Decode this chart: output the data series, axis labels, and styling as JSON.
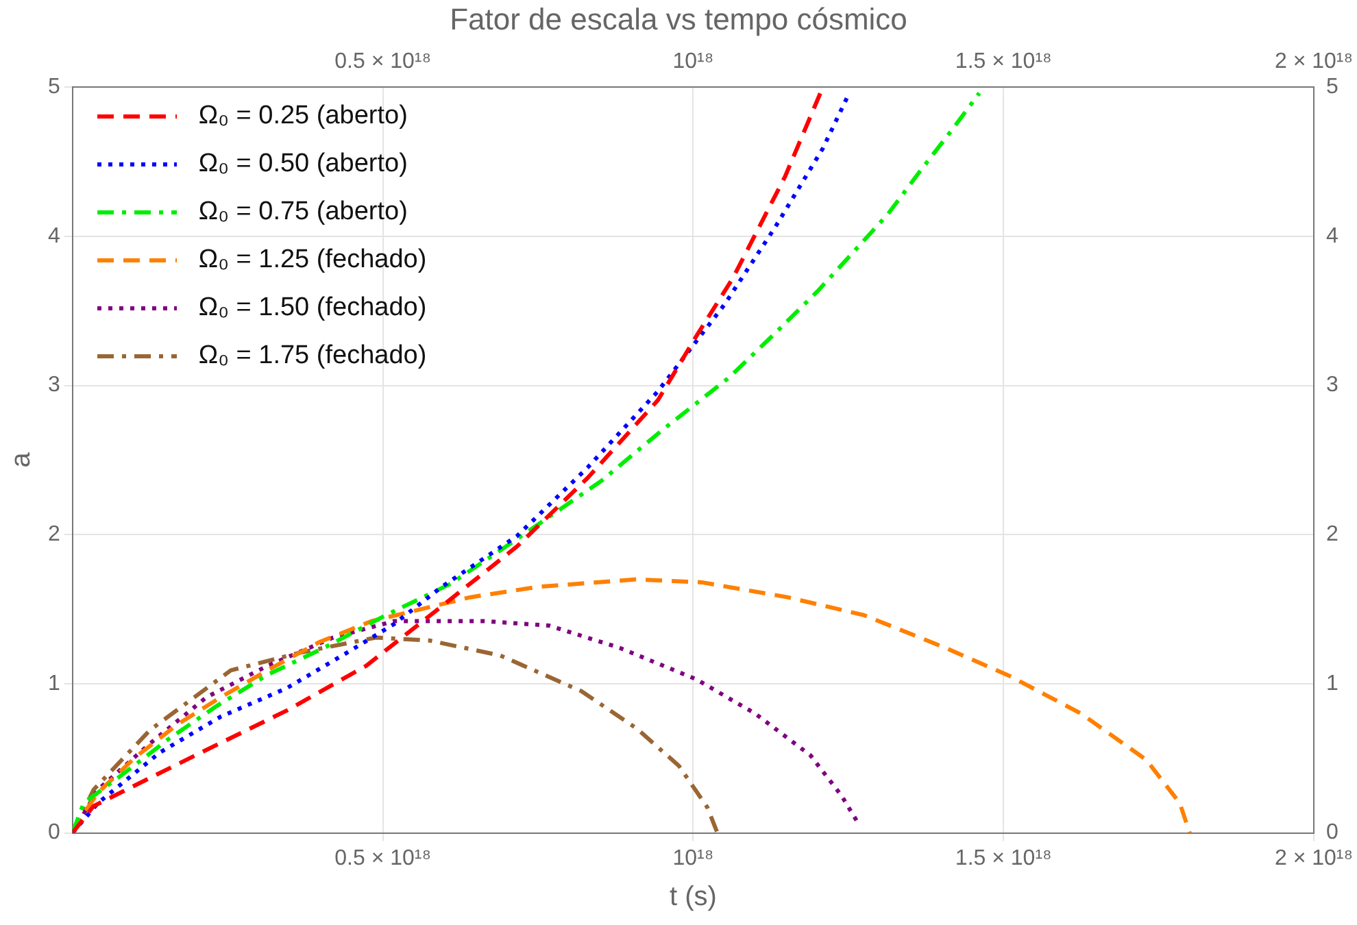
{
  "chart_data": {
    "type": "line",
    "title": "Fator de escala vs tempo cósmico",
    "xlabel": "t (s)",
    "ylabel": "a",
    "xlim": [
      0,
      2e+18
    ],
    "xticks": [
      {
        "value": 5e+17,
        "label": "0.5 × 10¹⁸"
      },
      {
        "value": 1e+18,
        "label": "10¹⁸"
      },
      {
        "value": 1.5e+18,
        "label": "1.5 × 10¹⁸"
      },
      {
        "value": 2e+18,
        "label": "2 × 10¹⁸"
      }
    ],
    "x2lim": [
      0,
      2e+18
    ],
    "x2ticks": [
      {
        "value": 5e+17,
        "label": "0.5 × 10¹⁸"
      },
      {
        "value": 1e+18,
        "label": "10¹⁸"
      },
      {
        "value": 1.5e+18,
        "label": "1.5 × 10¹⁸"
      },
      {
        "value": 2e+18,
        "label": "2 × 10¹⁸"
      }
    ],
    "ylim": [
      0,
      5
    ],
    "yticks": [
      0,
      1,
      2,
      3,
      4,
      5
    ],
    "y2lim": [
      0,
      5
    ],
    "y2ticks": [
      0,
      1,
      2,
      3,
      4,
      5
    ],
    "grid": true,
    "legend": "top left",
    "marker": "none",
    "series": [
      {
        "name": "Ω₀ = 0.25 (aberto)",
        "color": "#ff0000",
        "line_style": "dashed",
        "x": [
          0,
          3.4e+16,
          1.93e+17,
          3.45e+17,
          4.73e+17,
          5.95e+17,
          7.16e+17,
          8.3e+17,
          9.43e+17,
          1.005e+18,
          1.064e+18,
          1.148e+18,
          1.209e+18
        ],
        "values": [
          0,
          0.18,
          0.51,
          0.82,
          1.12,
          1.52,
          1.92,
          2.38,
          2.9,
          3.33,
          3.72,
          4.4,
          5.0
        ]
      },
      {
        "name": "Ω₀ = 0.50 (aberto)",
        "color": "#0000ff",
        "line_style": "dotted",
        "x": [
          0,
          4.1e+16,
          1.41e+17,
          2.39e+17,
          3.45e+17,
          4.43e+17,
          5.18e+17,
          5.95e+17,
          7.16e+17,
          8.3e+17,
          9.43e+17,
          1.05e+18,
          1.132e+18,
          1.209e+18,
          1.248e+18
        ],
        "values": [
          0,
          0.2,
          0.54,
          0.78,
          0.97,
          1.21,
          1.4,
          1.65,
          1.99,
          2.45,
          2.96,
          3.54,
          4.06,
          4.59,
          4.93
        ]
      },
      {
        "name": "Ω₀ = 0.75 (aberto)",
        "color": "#00ee00",
        "line_style": "dashdot",
        "x": [
          0,
          1.8e+16,
          8e+16,
          1.55e+17,
          2.32e+17,
          3.14e+17,
          4.05e+17,
          5.05e+17,
          6.09e+17,
          7.09e+17,
          8.52e+17,
          9.5e+17,
          1.057e+18,
          1.132e+18,
          1.2e+18,
          1.255e+18,
          1.314e+18,
          1.368e+18,
          1.42e+18,
          1.461e+18
        ],
        "values": [
          0,
          0.2,
          0.39,
          0.63,
          0.85,
          1.06,
          1.24,
          1.46,
          1.67,
          1.95,
          2.36,
          2.7,
          3.05,
          3.35,
          3.63,
          3.88,
          4.15,
          4.45,
          4.73,
          4.96
        ]
      },
      {
        "name": "Ω₀ = 1.25 (fechado)",
        "color": "#ff8000",
        "line_style": "dashed",
        "x": [
          0,
          5000000000000000.0,
          4.1e+16,
          1.02e+17,
          1.7e+17,
          2.39e+17,
          3.14e+17,
          3.98e+17,
          4.82e+17,
          6.41e+17,
          7.5e+17,
          9.09e+17,
          1.014e+18,
          1.152e+18,
          1.275e+18,
          1.407e+18,
          1.511e+18,
          1.625e+18,
          1.73e+18,
          1.784e+18,
          1.8e+18
        ],
        "values": [
          0,
          0.05,
          0.27,
          0.51,
          0.73,
          0.91,
          1.09,
          1.28,
          1.42,
          1.58,
          1.65,
          1.7,
          1.68,
          1.58,
          1.46,
          1.24,
          1.05,
          0.8,
          0.49,
          0.2,
          0
        ]
      },
      {
        "name": "Ω₀ = 1.50 (fechado)",
        "color": "#800080",
        "line_style": "dotted",
        "x": [
          0,
          4.1e+16,
          1.25e+17,
          2.16e+17,
          3.14e+17,
          4.2e+17,
          5.18e+17,
          6.64e+17,
          7.68e+17,
          8.82e+17,
          1.005e+18,
          1.1e+18,
          1.189e+18,
          1.239e+18,
          1.268e+18
        ],
        "values": [
          0,
          0.29,
          0.6,
          0.91,
          1.12,
          1.31,
          1.42,
          1.42,
          1.39,
          1.24,
          1.03,
          0.8,
          0.52,
          0.25,
          0.05
        ]
      },
      {
        "name": "Ω₀ = 1.75 (fechado)",
        "color": "#996633",
        "line_style": "dashdot",
        "x": [
          0,
          3.4e+16,
          1.25e+17,
          2.55e+17,
          3.68e+17,
          4.89e+17,
          5.75e+17,
          6.89e+17,
          8.2e+17,
          9.09e+17,
          9.77e+17,
          1.023e+18,
          1.039e+18
        ],
        "values": [
          0,
          0.29,
          0.69,
          1.09,
          1.21,
          1.31,
          1.29,
          1.19,
          0.95,
          0.7,
          0.45,
          0.17,
          0
        ]
      }
    ]
  }
}
